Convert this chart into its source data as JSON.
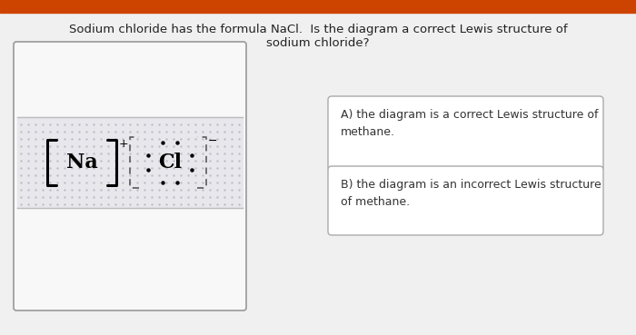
{
  "bg_color": "#f0f0f0",
  "title_line1": "Sodium chloride has the formula NaCl.  Is the diagram a correct Lewis structure of",
  "title_line2": "sodium chloride?",
  "title_fontsize": 9.5,
  "title_color": "#222222",
  "panel_bg": "#f8f8f8",
  "panel_border": "#999999",
  "option_a": "A) the diagram is a correct Lewis structure of\nmethane.",
  "option_b": "B) the diagram is an incorrect Lewis structure\nof methane.",
  "option_fontsize": 9.0,
  "option_color": "#333333",
  "option_box_color": "#ffffff",
  "option_border": "#aaaaaa",
  "top_bar_color": "#cc4400"
}
